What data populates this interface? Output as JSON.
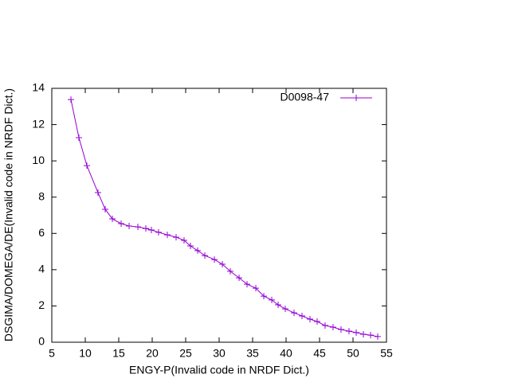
{
  "chart_data": {
    "type": "line",
    "xlabel": "ENGY-P(Invalid code in NRDF Dict.)",
    "ylabel": "DSGIMA/DOMEGA/DE(Invalid code in NRDF Dict.)",
    "xlim": [
      5,
      55
    ],
    "xticks": [
      5,
      10,
      15,
      20,
      25,
      30,
      35,
      40,
      45,
      50,
      55
    ],
    "ylim": [
      0,
      14
    ],
    "yticks": [
      0,
      2,
      4,
      6,
      8,
      10,
      12,
      14
    ],
    "legend": "top-right",
    "series": [
      {
        "name": "D0098-47",
        "color": "#9400d3",
        "x": [
          7.86,
          9.05,
          10.24,
          11.9,
          12.98,
          14.05,
          15.36,
          16.55,
          17.86,
          19.05,
          19.88,
          20.95,
          22.26,
          23.57,
          24.76,
          25.71,
          26.79,
          27.86,
          29.29,
          30.48,
          31.67,
          32.98,
          34.17,
          35.48,
          36.67,
          37.86,
          38.81,
          39.88,
          41.19,
          42.38,
          43.57,
          44.64,
          45.83,
          47.02,
          48.21,
          49.4,
          50.48,
          51.55,
          52.62,
          53.69
        ],
        "values": [
          13.38,
          11.28,
          9.74,
          8.25,
          7.33,
          6.8,
          6.54,
          6.41,
          6.36,
          6.27,
          6.19,
          6.06,
          5.92,
          5.79,
          5.62,
          5.31,
          5.05,
          4.78,
          4.56,
          4.3,
          3.91,
          3.55,
          3.2,
          2.98,
          2.54,
          2.33,
          2.06,
          1.84,
          1.62,
          1.45,
          1.27,
          1.14,
          0.92,
          0.83,
          0.7,
          0.61,
          0.53,
          0.44,
          0.39,
          0.31
        ]
      }
    ]
  }
}
